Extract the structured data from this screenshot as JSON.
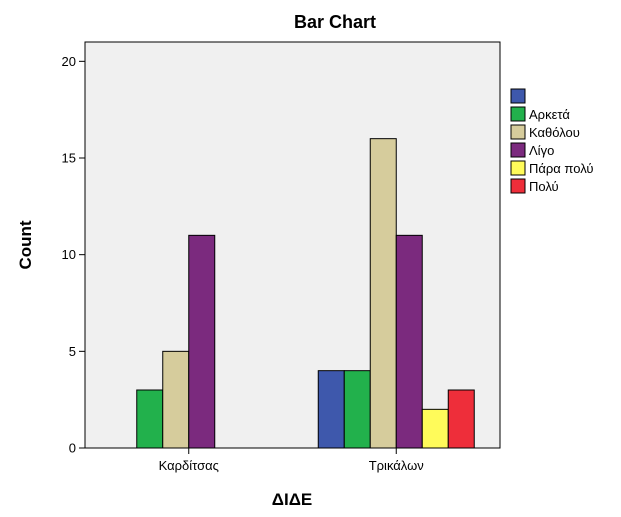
{
  "chart_data": {
    "type": "bar",
    "title": "Bar Chart",
    "xlabel": "ΔΙΔΕ",
    "ylabel": "Count",
    "categories": [
      "Καρδίτσας",
      "Τρικάλων"
    ],
    "ylim": [
      0,
      21
    ],
    "yticks": [
      0,
      5,
      10,
      15,
      20
    ],
    "grid": false,
    "legend_position": "right",
    "series": [
      {
        "name": "",
        "color": "#3e58ac",
        "values": [
          0,
          4
        ]
      },
      {
        "name": "Αρκετά",
        "color": "#22b14c",
        "values": [
          3,
          4
        ]
      },
      {
        "name": "Καθόλου",
        "color": "#d6cc9c",
        "values": [
          5,
          16
        ]
      },
      {
        "name": "Λίγο",
        "color": "#7b2a7e",
        "values": [
          11,
          11
        ]
      },
      {
        "name": "Πάρα πολύ",
        "color": "#fffb5a",
        "values": [
          0,
          2
        ]
      },
      {
        "name": "Πολύ",
        "color": "#ee2e3a",
        "values": [
          0,
          3
        ]
      }
    ],
    "plot_background": "#f0f0f0"
  }
}
